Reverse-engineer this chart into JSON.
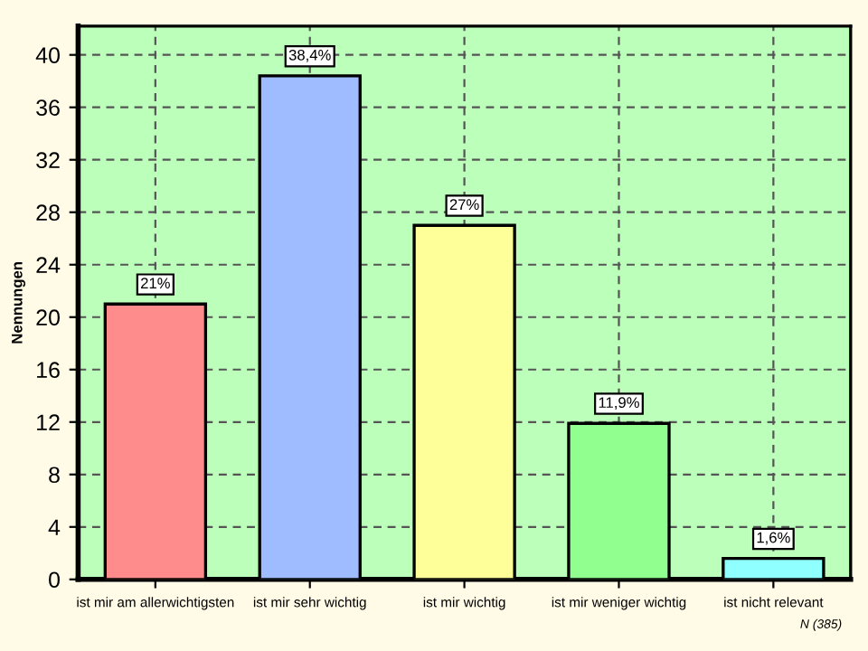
{
  "chart_data": {
    "type": "bar",
    "ylabel": "Nennungen",
    "categories": [
      "ist mir am allerwichtigsten",
      "ist mir sehr wichtig",
      "ist mir wichtig",
      "ist mir weniger wichtig",
      "ist nicht relevant"
    ],
    "values": [
      21,
      38.4,
      27,
      11.9,
      1.6
    ],
    "value_labels": [
      "21%",
      "38,4%",
      "27%",
      "11,9%",
      "1,6%"
    ],
    "colors": [
      "#ff8c8c",
      "#9ebcff",
      "#ffff99",
      "#90ff90",
      "#90ffff"
    ],
    "ylim": [
      0,
      42.2
    ],
    "yticks": [
      0,
      4,
      8,
      12,
      16,
      20,
      24,
      28,
      32,
      36,
      40
    ],
    "grid": true,
    "annotations": [
      "N (385)"
    ]
  }
}
